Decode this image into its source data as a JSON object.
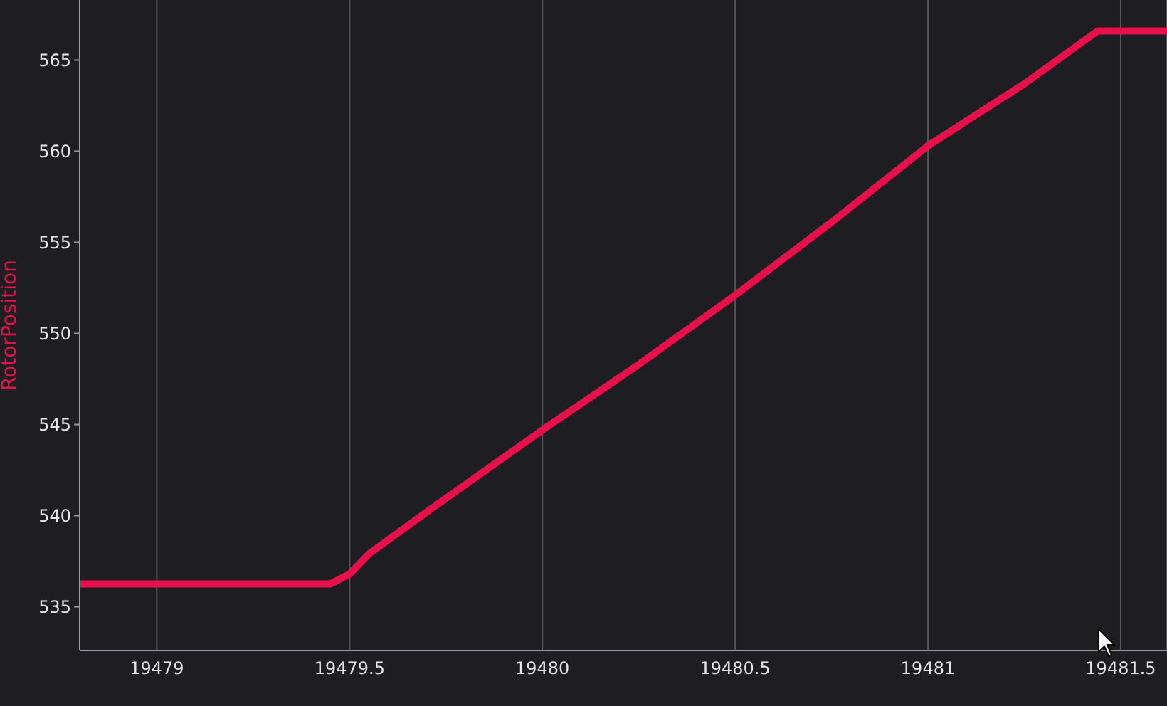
{
  "chart_data": {
    "type": "line",
    "ylabel": "RotorPosition",
    "xlim": [
      19478.8,
      19481.62
    ],
    "xticks": [
      19479,
      19479.5,
      19480,
      19480.5,
      19481,
      19481.5
    ],
    "ylim": [
      532.6,
      568.3
    ],
    "yticks": [
      535,
      540,
      545,
      550,
      555,
      560,
      565
    ],
    "grid": "x",
    "marker": "none",
    "line_style": "solid",
    "series": [
      {
        "color": "#e8104a",
        "x": [
          19478.8,
          19479.2,
          19479.45,
          19479.5,
          19479.55,
          19479.7,
          19480,
          19480.25,
          19480.5,
          19480.75,
          19481,
          19481.25,
          19481.44,
          19481.62
        ],
        "values": [
          536.25,
          536.25,
          536.25,
          536.8,
          537.9,
          540.2,
          544.7,
          548.3,
          552.1,
          556.1,
          560.3,
          563.7,
          566.6,
          566.6
        ]
      }
    ]
  }
}
